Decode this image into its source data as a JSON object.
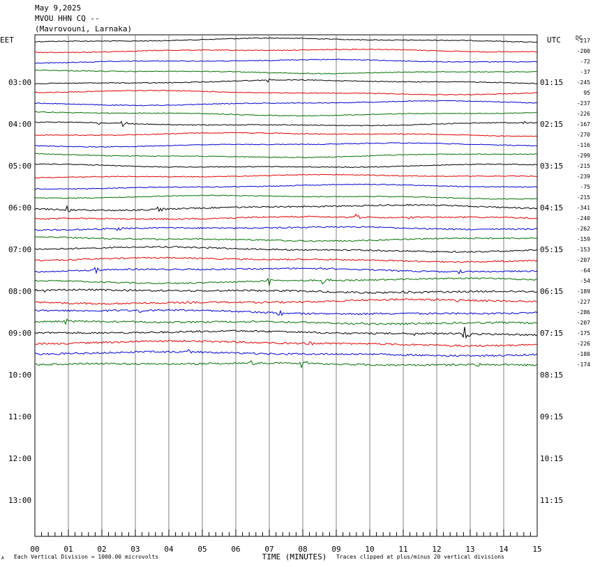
{
  "header": {
    "date": "May 9,2025",
    "station": "MVOU HHN CQ --",
    "location": "(Mavrovouni, Larnaka)"
  },
  "chart_data": {
    "type": "line",
    "title": "",
    "left_timezone": "EET",
    "right_timezone": "UTC",
    "dc_label": "DC",
    "xlabel": "TIME (MINUTES)",
    "xlim": [
      0,
      15
    ],
    "x_ticks": [
      "00",
      "01",
      "02",
      "03",
      "04",
      "05",
      "06",
      "07",
      "08",
      "09",
      "10",
      "11",
      "12",
      "13",
      "14",
      "15"
    ],
    "left_hour_labels": [
      "03:00",
      "04:00",
      "05:00",
      "06:00",
      "07:00",
      "08:00",
      "09:00",
      "10:00",
      "11:00",
      "12:00",
      "13:00"
    ],
    "right_hour_labels": [
      "01:15",
      "02:15",
      "03:15",
      "04:15",
      "05:15",
      "06:15",
      "07:15",
      "08:15",
      "09:15",
      "10:15",
      "11:15"
    ],
    "footer_left_mark": "A",
    "footer_left": "Each Vertical Division = 1000.00 microvolts",
    "footer_right": "Traces clipped at plus/minus 20 vertical divisions",
    "trace_colors": [
      "#000000",
      "#e00000",
      "#0000d0",
      "#007000"
    ],
    "dc_offsets": [
      "-217",
      "-200",
      "-72",
      "-37",
      "-245",
      "95",
      "-237",
      "-226",
      "-167",
      "-270",
      "-116",
      "-299",
      "-215",
      "-239",
      "-75",
      "-215",
      "-341",
      "-240",
      "-262",
      "-159",
      "-153",
      "-207",
      "-64",
      "-54",
      "-189",
      "-227",
      "-286",
      "-207",
      "-175",
      "-226",
      "-180",
      "-174"
    ],
    "traces_shown": 32,
    "events": [
      {
        "trace": 4,
        "minute": 7.0,
        "amp": 2.5
      },
      {
        "trace": 8,
        "minute": 1.9,
        "amp": 3
      },
      {
        "trace": 8,
        "minute": 2.6,
        "amp": 6
      },
      {
        "trace": 8,
        "minute": 14.6,
        "amp": 3
      },
      {
        "trace": 16,
        "minute": 1.0,
        "amp": 5
      },
      {
        "trace": 16,
        "minute": 3.7,
        "amp": 4
      },
      {
        "trace": 17,
        "minute": 9.6,
        "amp": 6
      },
      {
        "trace": 17,
        "minute": 11.2,
        "amp": 4
      },
      {
        "trace": 18,
        "minute": 2.5,
        "amp": 3
      },
      {
        "trace": 20,
        "minute": 5.2,
        "amp": 3
      },
      {
        "trace": 22,
        "minute": 1.8,
        "amp": 6
      },
      {
        "trace": 22,
        "minute": 12.7,
        "amp": 4
      },
      {
        "trace": 23,
        "minute": 7.0,
        "amp": 10
      },
      {
        "trace": 23,
        "minute": 8.6,
        "amp": 7
      },
      {
        "trace": 24,
        "minute": 0.3,
        "amp": 4
      },
      {
        "trace": 24,
        "minute": 11.0,
        "amp": 5
      },
      {
        "trace": 25,
        "minute": 12.6,
        "amp": 4
      },
      {
        "trace": 26,
        "minute": 3.1,
        "amp": 6
      },
      {
        "trace": 26,
        "minute": 7.3,
        "amp": 6
      },
      {
        "trace": 27,
        "minute": 0.9,
        "amp": 6
      },
      {
        "trace": 28,
        "minute": 11.3,
        "amp": 6
      },
      {
        "trace": 28,
        "minute": 12.8,
        "amp": 14
      },
      {
        "trace": 29,
        "minute": 8.2,
        "amp": 5
      },
      {
        "trace": 30,
        "minute": 4.6,
        "amp": 6
      },
      {
        "trace": 31,
        "minute": 6.5,
        "amp": 6
      },
      {
        "trace": 31,
        "minute": 8.0,
        "amp": 6
      },
      {
        "trace": 31,
        "minute": 13.2,
        "amp": 5
      }
    ]
  }
}
